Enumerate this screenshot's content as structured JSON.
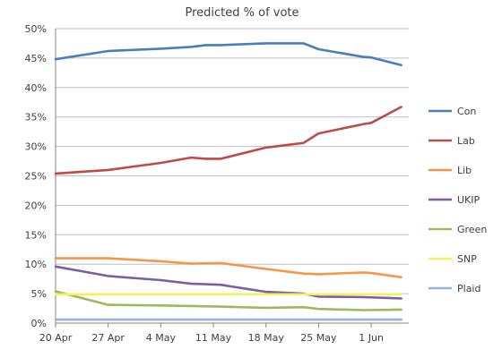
{
  "chart_data": {
    "type": "line",
    "title": "Predicted % of vote",
    "xlabel": "",
    "ylabel": "",
    "ylim": [
      0,
      50
    ],
    "yticks": [
      0,
      5,
      10,
      15,
      20,
      25,
      30,
      35,
      40,
      45,
      50
    ],
    "ytick_labels": [
      "0%",
      "5%",
      "10%",
      "15%",
      "20%",
      "25%",
      "30%",
      "35%",
      "40%",
      "45%",
      "50%"
    ],
    "xlim": [
      "2015-04-20",
      "2015-06-06"
    ],
    "xticks": [
      "2015-04-20",
      "2015-04-27",
      "2015-05-04",
      "2015-05-11",
      "2015-05-18",
      "2015-05-25",
      "2015-06-01"
    ],
    "xtick_labels": [
      "20 Apr",
      "27 Apr",
      "4 May",
      "11 May",
      "18 May",
      "25 May",
      "1 Jun"
    ],
    "grid": "horizontal",
    "legend_position": "right",
    "series": [
      {
        "name": "Con",
        "color": "#4a7ebb",
        "points": [
          [
            "2015-04-20",
            44.8
          ],
          [
            "2015-04-27",
            46.2
          ],
          [
            "2015-05-04",
            46.6
          ],
          [
            "2015-05-08",
            46.9
          ],
          [
            "2015-05-10",
            47.2
          ],
          [
            "2015-05-12",
            47.2
          ],
          [
            "2015-05-18",
            47.5
          ],
          [
            "2015-05-23",
            47.5
          ],
          [
            "2015-05-25",
            46.5
          ],
          [
            "2015-05-31",
            45.2
          ],
          [
            "2015-06-01",
            45.1
          ],
          [
            "2015-06-05",
            43.8
          ]
        ]
      },
      {
        "name": "Lab",
        "color": "#be4b48",
        "points": [
          [
            "2015-04-20",
            25.4
          ],
          [
            "2015-04-27",
            26.0
          ],
          [
            "2015-05-04",
            27.2
          ],
          [
            "2015-05-08",
            28.1
          ],
          [
            "2015-05-10",
            27.9
          ],
          [
            "2015-05-12",
            27.9
          ],
          [
            "2015-05-18",
            29.8
          ],
          [
            "2015-05-23",
            30.6
          ],
          [
            "2015-05-25",
            32.2
          ],
          [
            "2015-05-31",
            33.8
          ],
          [
            "2015-06-01",
            34.0
          ],
          [
            "2015-06-05",
            36.7
          ]
        ]
      },
      {
        "name": "Lib",
        "color": "#f79646",
        "points": [
          [
            "2015-04-20",
            11.0
          ],
          [
            "2015-04-27",
            11.0
          ],
          [
            "2015-05-04",
            10.5
          ],
          [
            "2015-05-08",
            10.1
          ],
          [
            "2015-05-12",
            10.2
          ],
          [
            "2015-05-18",
            9.2
          ],
          [
            "2015-05-23",
            8.4
          ],
          [
            "2015-05-25",
            8.3
          ],
          [
            "2015-05-31",
            8.6
          ],
          [
            "2015-06-01",
            8.5
          ],
          [
            "2015-06-05",
            7.8
          ]
        ]
      },
      {
        "name": "UKIP",
        "color": "#7d5fa0",
        "points": [
          [
            "2015-04-20",
            9.6
          ],
          [
            "2015-04-27",
            8.0
          ],
          [
            "2015-05-04",
            7.3
          ],
          [
            "2015-05-08",
            6.7
          ],
          [
            "2015-05-12",
            6.5
          ],
          [
            "2015-05-18",
            5.3
          ],
          [
            "2015-05-23",
            5.0
          ],
          [
            "2015-05-25",
            4.5
          ],
          [
            "2015-05-31",
            4.4
          ],
          [
            "2015-06-05",
            4.2
          ]
        ]
      },
      {
        "name": "Green",
        "color": "#9bbb59",
        "points": [
          [
            "2015-04-20",
            5.4
          ],
          [
            "2015-04-27",
            3.1
          ],
          [
            "2015-05-04",
            3.0
          ],
          [
            "2015-05-08",
            2.9
          ],
          [
            "2015-05-12",
            2.8
          ],
          [
            "2015-05-18",
            2.6
          ],
          [
            "2015-05-23",
            2.7
          ],
          [
            "2015-05-25",
            2.4
          ],
          [
            "2015-05-31",
            2.2
          ],
          [
            "2015-06-05",
            2.3
          ]
        ]
      },
      {
        "name": "SNP",
        "color": "#f2f261",
        "points": [
          [
            "2015-04-20",
            4.9
          ],
          [
            "2015-06-05",
            4.9
          ]
        ]
      },
      {
        "name": "Plaid",
        "color": "#95b3d7",
        "points": [
          [
            "2015-04-20",
            0.6
          ],
          [
            "2015-06-05",
            0.6
          ]
        ]
      }
    ]
  }
}
